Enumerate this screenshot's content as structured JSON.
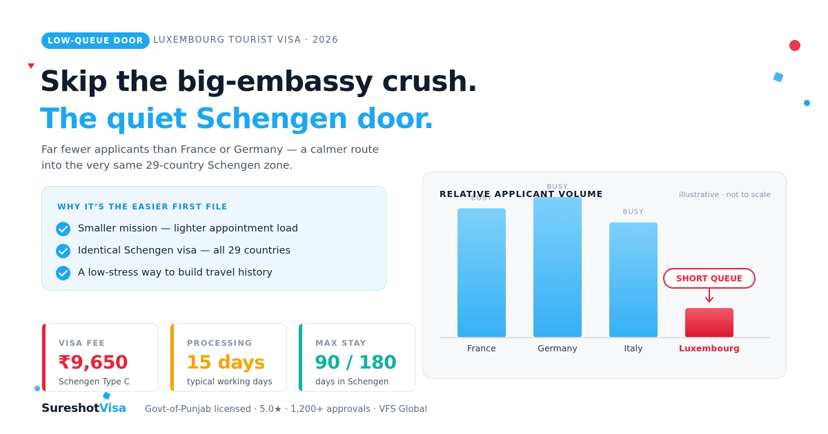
{
  "header": {
    "badge": "LOW-QUEUE DOOR",
    "kicker": "LUXEMBOURG TOURIST VISA · 2026",
    "headline_1": "Skip the big-embassy crush.",
    "headline_2": "The quiet Schengen door.",
    "subtitle_1": "Far fewer applicants than France or Germany — a calmer route",
    "subtitle_2": "into the very same 29-country Schengen zone."
  },
  "why": {
    "title": "WHY IT’S THE EASIER FIRST FILE",
    "items": [
      "Smaller mission — lighter appointment load",
      "Identical Schengen visa — all 29 countries",
      "A low-stress way to build travel history"
    ]
  },
  "stats": [
    {
      "label": "VISA FEE",
      "value": "₹9,650",
      "note": "Schengen Type C",
      "color": "#e1263c"
    },
    {
      "label": "PROCESSING",
      "value": "15 days",
      "note": "typical working days",
      "color": "#f5a30a"
    },
    {
      "label": "MAX STAY",
      "value": "90 / 180",
      "note": "days in Schengen",
      "color": "#10b3a0"
    }
  ],
  "footer": {
    "logo_a": "Sureshot",
    "logo_b": "Visa",
    "text": "Govt-of-Punjab licensed · 5.0★ · 1,200+ approvals · VFS Global"
  },
  "chart_data": {
    "type": "bar",
    "title": "RELATIVE APPLICANT VOLUME",
    "note": "illustrative · not to scale",
    "categories": [
      "France",
      "Germany",
      "Italy",
      "Luxembourg"
    ],
    "values": [
      0.92,
      1.0,
      0.82,
      0.21
    ],
    "labels": [
      "BUSY",
      "BUSY",
      "BUSY",
      ""
    ],
    "highlight": "Luxembourg",
    "callout": "SHORT QUEUE",
    "ylim": [
      0,
      1
    ],
    "grid": false,
    "colors": {
      "normal": "#44b8f6",
      "highlight": "#e1263c"
    }
  }
}
